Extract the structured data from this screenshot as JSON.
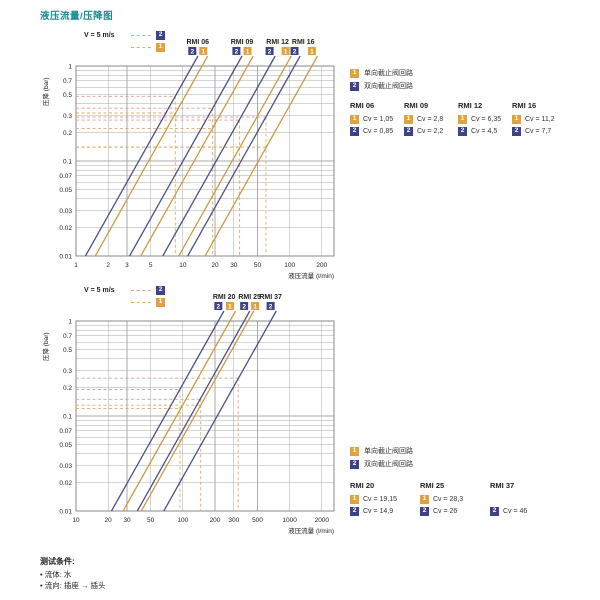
{
  "page": {
    "title": "液压流量/压降图"
  },
  "colors": {
    "accent": "#1e8a93",
    "navy": "#4d5187",
    "orange": "#cb9b45",
    "badge_navy": "#3e4387",
    "badge_orange": "#dfa23f",
    "dash_pink": "#e39a94",
    "dash_orange": "#d9ae62",
    "grid": "#a9a9a9",
    "border": "#8a8a8a",
    "text": "#333333"
  },
  "legend": {
    "v_label": "V = 5 m/s",
    "badge1": "1",
    "badge2": "2",
    "circuit1": "单向截止阀回路",
    "circuit2": "双向截止阀回路"
  },
  "footer": {
    "title": "测试条件:",
    "items": [
      "•  流体: 水",
      "•  流向: 插座 → 插头"
    ]
  },
  "chart_data": [
    {
      "type": "line",
      "xscale": "log",
      "yscale": "log",
      "xlabel": "液压流量 (l/min)",
      "ylabel": "压降 (bar)",
      "xlim": [
        1,
        260
      ],
      "ylim": [
        0.01,
        1
      ],
      "xticks": [
        1,
        2,
        3,
        5,
        10,
        20,
        30,
        50,
        100,
        200
      ],
      "yticks": [
        0.01,
        0.02,
        0.03,
        0.05,
        0.07,
        0.1,
        0.2,
        0.3,
        0.5,
        0.7,
        1
      ],
      "series": [
        {
          "name": "RMI 06",
          "v5_flow_lpm": 8.5,
          "circuits": [
            {
              "badge": "1",
              "cv": 1.05,
              "cv_label": "Cv = 1,05",
              "dp_at_v5_bar": 0.32
            },
            {
              "badge": "2",
              "cv": 0.85,
              "cv_label": "Cv = 0,85",
              "dp_at_v5_bar": 0.48
            }
          ]
        },
        {
          "name": "RMI 09",
          "v5_flow_lpm": 19,
          "circuits": [
            {
              "badge": "1",
              "cv": 2.8,
              "cv_label": "Cv = 2,8",
              "dp_at_v5_bar": 0.22
            },
            {
              "badge": "2",
              "cv": 2.2,
              "cv_label": "Cv = 2,2",
              "dp_at_v5_bar": 0.36
            }
          ]
        },
        {
          "name": "RMI 12",
          "v5_flow_lpm": 34,
          "circuits": [
            {
              "badge": "1",
              "cv": 6.35,
              "cv_label": "Cv = 6,35",
              "dp_at_v5_bar": 0.14
            },
            {
              "badge": "2",
              "cv": 4.5,
              "cv_label": "Cv = 4,5",
              "dp_at_v5_bar": 0.27
            }
          ]
        },
        {
          "name": "RMI 16",
          "v5_flow_lpm": 60,
          "circuits": [
            {
              "badge": "1",
              "cv": 11.2,
              "cv_label": "Cv = 11,2",
              "dp_at_v5_bar": 0.14
            },
            {
              "badge": "2",
              "cv": 7.7,
              "cv_label": "Cv = 7,7",
              "dp_at_v5_bar": 0.29
            }
          ]
        }
      ]
    },
    {
      "type": "line",
      "xscale": "log",
      "yscale": "log",
      "xlabel": "液压流量 (l/min)",
      "ylabel": "压降 (bar)",
      "xlim": [
        10,
        2600
      ],
      "ylim": [
        0.01,
        1
      ],
      "xticks": [
        10,
        20,
        30,
        50,
        100,
        200,
        300,
        500,
        1000,
        2000
      ],
      "yticks": [
        0.01,
        0.02,
        0.03,
        0.05,
        0.07,
        0.1,
        0.2,
        0.3,
        0.5,
        0.7,
        1
      ],
      "series": [
        {
          "name": "RMI 20",
          "v5_flow_lpm": 94,
          "circuits": [
            {
              "badge": "1",
              "cv": 19.15,
              "cv_label": "Cv = 19,15",
              "dp_at_v5_bar": 0.12
            },
            {
              "badge": "2",
              "cv": 14.9,
              "cv_label": "Cv = 14,9",
              "dp_at_v5_bar": 0.19
            }
          ]
        },
        {
          "name": "RMI 25",
          "v5_flow_lpm": 147,
          "circuits": [
            {
              "badge": "1",
              "cv": 28.3,
              "cv_label": "Cv = 28,3",
              "dp_at_v5_bar": 0.13
            },
            {
              "badge": "2",
              "cv": 26,
              "cv_label": "Cv = 26",
              "dp_at_v5_bar": 0.15
            }
          ]
        },
        {
          "name": "RMI 37",
          "v5_flow_lpm": 330,
          "circuits": [
            {
              "badge": "2",
              "cv": 46,
              "cv_label": "Cv = 46",
              "dp_at_v5_bar": 0.25
            }
          ]
        }
      ]
    }
  ]
}
